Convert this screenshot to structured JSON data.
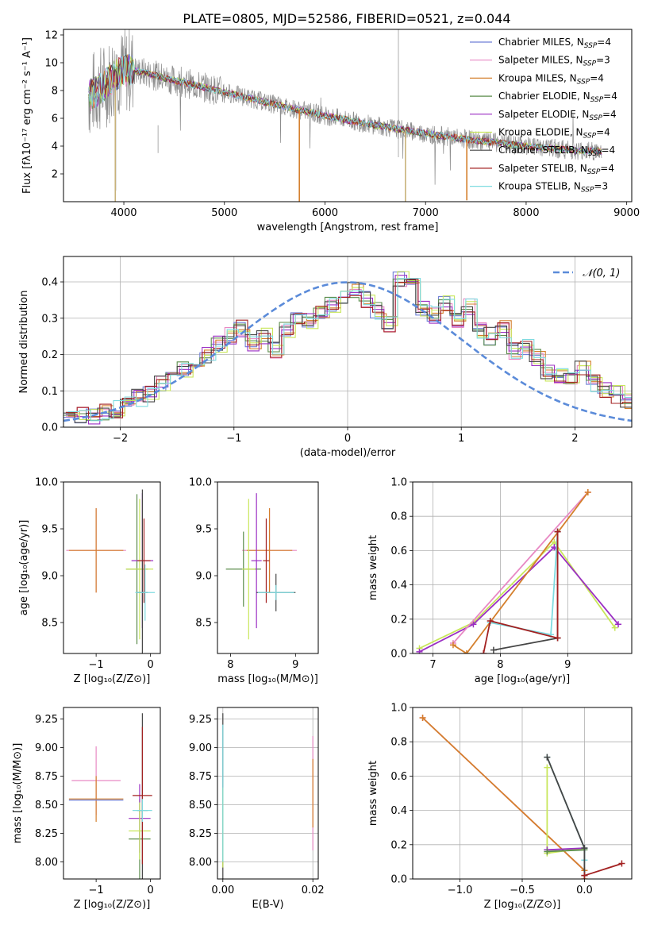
{
  "title": "PLATE=0805, MJD=52586, FIBERID=0521, z=0.044",
  "colors": {
    "chabrier_miles": "#6f7fd6",
    "salpeter_miles": "#e889c4",
    "kroupa_miles": "#d47f2c",
    "chabrier_elodie": "#5c8d4c",
    "salpeter_elodie": "#9b2fc4",
    "kroupa_elodie": "#c8e65a",
    "chabrier_stelib": "#454545",
    "salpeter_stelib": "#a32121",
    "kroupa_stelib": "#7fdbe0",
    "normal": "#5b8bd9",
    "data": "#8c8c8c"
  },
  "chart_data": [
    {
      "panel": "spectrum",
      "type": "line",
      "title": "PLATE=0805, MJD=52586, FIBERID=0521, z=0.044",
      "xlabel": "wavelength [Angstrom, rest frame]",
      "ylabel": "Flux [fλ10⁻¹⁷ erg cm⁻² s⁻¹ A⁻¹]",
      "xlim": [
        3400,
        9050
      ],
      "ylim": [
        0,
        12.4
      ],
      "xticks": [
        "4000",
        "5000",
        "6000",
        "7000",
        "8000",
        "9000"
      ],
      "xtick_values": [
        4000,
        5000,
        6000,
        7000,
        8000,
        9000
      ],
      "yticks": [
        "2",
        "4",
        "6",
        "8",
        "10",
        "12"
      ],
      "ytick_values": [
        2,
        4,
        6,
        8,
        10,
        12
      ],
      "grid": false,
      "legend_position": "top-right",
      "legend": [
        {
          "label": "Chabrier MILES, N",
          "sub": "SSP",
          "tail": "=4",
          "color": "#6f7fd6"
        },
        {
          "label": "Salpeter MILES, N",
          "sub": "SSP",
          "tail": "=3",
          "color": "#e889c4"
        },
        {
          "label": "Kroupa MILES, N",
          "sub": "SSP",
          "tail": "=4",
          "color": "#d47f2c"
        },
        {
          "label": "Chabrier ELODIE, N",
          "sub": "SSP",
          "tail": "=4",
          "color": "#5c8d4c"
        },
        {
          "label": "Salpeter ELODIE, N",
          "sub": "SSP",
          "tail": "=4",
          "color": "#9b2fc4"
        },
        {
          "label": "Kroupa ELODIE, N",
          "sub": "SSP",
          "tail": "=4",
          "color": "#c8e65a"
        },
        {
          "label": "Chabrier STELIB, N",
          "sub": "SSP",
          "tail": "=4",
          "color": "#454545"
        },
        {
          "label": "Salpeter STELIB, N",
          "sub": "SSP",
          "tail": "=4",
          "color": "#a32121"
        },
        {
          "label": "Kroupa STELIB, N",
          "sub": "SSP",
          "tail": "=3",
          "color": "#7fdbe0"
        }
      ],
      "continuum": [
        [
          3650,
          7.6
        ],
        [
          3800,
          8.3
        ],
        [
          3950,
          9.3
        ],
        [
          4050,
          9.5
        ],
        [
          4200,
          9.3
        ],
        [
          4400,
          8.9
        ],
        [
          4700,
          8.4
        ],
        [
          5000,
          7.9
        ],
        [
          5500,
          7.0
        ],
        [
          6000,
          6.2
        ],
        [
          6500,
          5.5
        ],
        [
          7000,
          4.9
        ],
        [
          7400,
          4.5
        ],
        [
          8000,
          4.0
        ],
        [
          8500,
          3.7
        ],
        [
          8750,
          3.6
        ]
      ],
      "model_drops": [
        {
          "x": 3915,
          "to": 0.0,
          "color": "#c8b27a"
        },
        {
          "x": 5745,
          "to": 0.0,
          "color": "#d47f2c"
        },
        {
          "x": 6800,
          "to": 0.0,
          "color": "#c8b27a"
        },
        {
          "x": 7410,
          "to": 0.1,
          "color": "#d47f2c"
        }
      ]
    },
    {
      "panel": "residuals",
      "type": "step",
      "xlabel": "(data-model)/error",
      "ylabel": "Normed distribution",
      "xlim": [
        -2.5,
        2.5
      ],
      "ylim": [
        0,
        0.47
      ],
      "xticks": [
        "−2",
        "−1",
        "0",
        "1",
        "2"
      ],
      "xtick_values": [
        -2,
        -1,
        0,
        1,
        2
      ],
      "yticks": [
        "0.0",
        "0.1",
        "0.2",
        "0.3",
        "0.4"
      ],
      "ytick_values": [
        0.0,
        0.1,
        0.2,
        0.3,
        0.4
      ],
      "grid": true,
      "legend_position": "top-right",
      "legend": [
        {
          "label": "𝒩(0, 1)",
          "style": "dashed",
          "color": "#5b8bd9"
        }
      ],
      "bin_width": 0.1,
      "bin_start": -2.5,
      "hist_base": [
        0.04,
        0.03,
        0.03,
        0.04,
        0.05,
        0.06,
        0.08,
        0.09,
        0.12,
        0.14,
        0.16,
        0.18,
        0.2,
        0.23,
        0.25,
        0.27,
        0.23,
        0.25,
        0.21,
        0.27,
        0.3,
        0.29,
        0.31,
        0.34,
        0.36,
        0.38,
        0.35,
        0.32,
        0.28,
        0.41,
        0.39,
        0.33,
        0.31,
        0.34,
        0.29,
        0.33,
        0.27,
        0.25,
        0.27,
        0.21,
        0.22,
        0.19,
        0.15,
        0.14,
        0.13,
        0.16,
        0.12,
        0.1,
        0.09,
        0.07
      ],
      "normal_curve": {
        "mu": 0,
        "sigma": 1,
        "label": "𝒩(0, 1)"
      }
    },
    {
      "panel": "age_vs_Z",
      "type": "errorbar",
      "xlabel": "Z [log₁₀(Z/Z⊙)]",
      "ylabel": "age  [log₁₀(age/yr)]",
      "xlim": [
        -1.6,
        0.18
      ],
      "ylim": [
        8.17,
        10.0
      ],
      "xticks": [
        "−1",
        "0"
      ],
      "xtick_values": [
        -1,
        0
      ],
      "yticks": [
        "8.5",
        "9.0",
        "9.5",
        "10.0"
      ],
      "ytick_values": [
        8.5,
        9.0,
        9.5,
        10.0
      ],
      "grid": false,
      "points": [
        {
          "x": -1.0,
          "y": 9.27,
          "xerr": 0.55,
          "yerr": 0.45,
          "color": "#e889c4"
        },
        {
          "x": -1.0,
          "y": 9.27,
          "xerr": 0.5,
          "yerr": 0.45,
          "color": "#d47f2c"
        },
        {
          "x": -0.25,
          "y": 9.07,
          "xerr": 0.2,
          "yerr": 0.8,
          "color": "#5c8d4c"
        },
        {
          "x": -0.15,
          "y": 9.16,
          "xerr": 0.2,
          "yerr": 0.72,
          "color": "#9b2fc4"
        },
        {
          "x": -0.2,
          "y": 9.07,
          "xerr": 0.25,
          "yerr": 0.75,
          "color": "#c8e65a"
        },
        {
          "x": -0.15,
          "y": 8.82,
          "xerr": 0.1,
          "yerr": 1.1,
          "color": "#454545"
        },
        {
          "x": -0.12,
          "y": 9.16,
          "xerr": 0.12,
          "yerr": 0.45,
          "color": "#a32121"
        },
        {
          "x": -0.1,
          "y": 8.82,
          "xerr": 0.18,
          "yerr": 0.3,
          "color": "#7fdbe0"
        }
      ]
    },
    {
      "panel": "age_vs_mass",
      "type": "errorbar",
      "xlabel": "mass [log₁₀(M/M⊙)]",
      "ylabel": "",
      "xlim": [
        7.8,
        9.35
      ],
      "ylim": [
        8.17,
        10.0
      ],
      "xticks": [
        "8",
        "9"
      ],
      "xtick_values": [
        8,
        9
      ],
      "yticks": [
        "8.5",
        "9.0",
        "9.5",
        "10.0"
      ],
      "ytick_values": [
        8.5,
        9.0,
        9.5,
        10.0
      ],
      "grid": false,
      "points": [
        {
          "x": 8.6,
          "y": 9.27,
          "xerr": 0.42,
          "yerr": 0.45,
          "color": "#e889c4"
        },
        {
          "x": 8.6,
          "y": 9.27,
          "xerr": 0.35,
          "yerr": 0.45,
          "color": "#d47f2c"
        },
        {
          "x": 8.2,
          "y": 9.07,
          "xerr": 0.27,
          "yerr": 0.4,
          "color": "#5c8d4c"
        },
        {
          "x": 8.4,
          "y": 9.16,
          "xerr": 0.08,
          "yerr": 0.72,
          "color": "#9b2fc4"
        },
        {
          "x": 8.28,
          "y": 9.07,
          "xerr": 0.1,
          "yerr": 0.75,
          "color": "#c8e65a"
        },
        {
          "x": 8.7,
          "y": 8.82,
          "xerr": 0.3,
          "yerr": 0.2,
          "color": "#454545"
        },
        {
          "x": 8.55,
          "y": 9.16,
          "xerr": 0.05,
          "yerr": 0.45,
          "color": "#a32121"
        },
        {
          "x": 8.7,
          "y": 8.82,
          "xerr": 0.28,
          "yerr": 0.08,
          "color": "#7fdbe0"
        }
      ]
    },
    {
      "panel": "weight_vs_age",
      "type": "line",
      "xlabel": "age  [log₁₀(age/yr)]",
      "ylabel": "mass weight",
      "xlim": [
        6.7,
        9.95
      ],
      "ylim": [
        0,
        1.0
      ],
      "xticks": [
        "7",
        "8",
        "9"
      ],
      "xtick_values": [
        7,
        8,
        9
      ],
      "yticks": [
        "0.0",
        "0.2",
        "0.4",
        "0.6",
        "0.8",
        "1.0"
      ],
      "ytick_values": [
        0.0,
        0.2,
        0.4,
        0.6,
        0.8,
        1.0
      ],
      "grid": true,
      "series": [
        {
          "color": "#c8e65a",
          "points": [
            [
              6.8,
              0.03
            ],
            [
              7.6,
              0.18
            ],
            [
              8.8,
              0.65
            ],
            [
              9.7,
              0.15
            ]
          ]
        },
        {
          "color": "#9b2fc4",
          "points": [
            [
              6.8,
              0.01
            ],
            [
              7.6,
              0.17
            ],
            [
              8.8,
              0.62
            ],
            [
              9.75,
              0.17
            ]
          ]
        },
        {
          "color": "#e889c4",
          "points": [
            [
              7.3,
              0.06
            ],
            [
              9.3,
              0.94
            ]
          ]
        },
        {
          "color": "#d47f2c",
          "points": [
            [
              7.3,
              0.05
            ],
            [
              7.5,
              0.0
            ],
            [
              9.3,
              0.94
            ]
          ]
        },
        {
          "color": "#7fdbe0",
          "points": [
            [
              7.85,
              0.18
            ],
            [
              8.75,
              0.11
            ],
            [
              8.85,
              0.71
            ]
          ]
        },
        {
          "color": "#454545",
          "points": [
            [
              7.9,
              0.02
            ],
            [
              8.85,
              0.09
            ],
            [
              8.85,
              0.71
            ]
          ]
        },
        {
          "color": "#a32121",
          "points": [
            [
              7.75,
              0.0
            ],
            [
              7.85,
              0.19
            ],
            [
              8.85,
              0.09
            ],
            [
              8.85,
              0.71
            ]
          ]
        }
      ]
    },
    {
      "panel": "mass_vs_Z",
      "type": "errorbar",
      "xlabel": "Z [log₁₀(Z/Z⊙)]",
      "ylabel": "mass [log₁₀(M/M⊙)]",
      "xlim": [
        -1.6,
        0.18
      ],
      "ylim": [
        7.85,
        9.35
      ],
      "xticks": [
        "−1",
        "0"
      ],
      "xtick_values": [
        -1,
        0
      ],
      "yticks": [
        "8.00",
        "8.25",
        "8.50",
        "8.75",
        "9.00",
        "9.25"
      ],
      "ytick_values": [
        8.0,
        8.25,
        8.5,
        8.75,
        9.0,
        9.25
      ],
      "grid": false,
      "points": [
        {
          "x": -1.0,
          "y": 8.71,
          "xerr": 0.45,
          "yerr": 0.3,
          "color": "#e889c4"
        },
        {
          "x": -1.0,
          "y": 8.55,
          "xerr": 0.5,
          "yerr": 0.2,
          "color": "#d47f2c"
        },
        {
          "x": -1.0,
          "y": 8.54,
          "xerr": 0.5,
          "yerr": 0.0,
          "color": "#6f7fd6"
        },
        {
          "x": -0.2,
          "y": 8.2,
          "xerr": 0.2,
          "yerr": 0.35,
          "color": "#5c8d4c"
        },
        {
          "x": -0.2,
          "y": 8.38,
          "xerr": 0.2,
          "yerr": 0.3,
          "color": "#9b2fc4"
        },
        {
          "x": -0.2,
          "y": 8.27,
          "xerr": 0.2,
          "yerr": 0.25,
          "color": "#c8e65a"
        },
        {
          "x": -0.15,
          "y": 8.45,
          "xerr": 0.1,
          "yerr": 0.85,
          "color": "#454545"
        },
        {
          "x": -0.15,
          "y": 8.58,
          "xerr": 0.18,
          "yerr": 0.6,
          "color": "#a32121"
        },
        {
          "x": -0.15,
          "y": 8.45,
          "xerr": 0.18,
          "yerr": 0.1,
          "color": "#7fdbe0"
        }
      ]
    },
    {
      "panel": "mass_vs_ebv",
      "type": "errorbar",
      "xlabel": "E(B-V)",
      "ylabel": "",
      "xlim": [
        -0.0012,
        0.0212
      ],
      "ylim": [
        7.85,
        9.35
      ],
      "xticks": [
        "0.00",
        "0.02"
      ],
      "xtick_values": [
        0.0,
        0.02
      ],
      "yticks": [
        "8.00",
        "8.25",
        "8.50",
        "8.75",
        "9.00",
        "9.25"
      ],
      "ytick_values": [
        8.0,
        8.25,
        8.5,
        8.75,
        9.0,
        9.25
      ],
      "grid": true,
      "points": [
        {
          "x": 0.0,
          "y": 8.5,
          "xerr": 0,
          "yerr": 0.8,
          "color": "#454545"
        },
        {
          "x": 0.0,
          "y": 8.3,
          "xerr": 0,
          "yerr": 0.35,
          "color": "#c8e65a"
        },
        {
          "x": 0.0,
          "y": 8.6,
          "xerr": 0,
          "yerr": 0.6,
          "color": "#7fdbe0"
        },
        {
          "x": 0.02,
          "y": 8.6,
          "xerr": 0,
          "yerr": 0.5,
          "color": "#e889c4"
        },
        {
          "x": 0.02,
          "y": 8.6,
          "xerr": 0,
          "yerr": 0.3,
          "color": "#d47f2c"
        }
      ]
    },
    {
      "panel": "weight_vs_Z",
      "type": "line",
      "xlabel": "Z [log₁₀(Z/Z⊙)]",
      "ylabel": "mass weight",
      "xlim": [
        -1.38,
        0.38
      ],
      "ylim": [
        0,
        1.0
      ],
      "xticks": [
        "−1.0",
        "−0.5",
        "0.0"
      ],
      "xtick_values": [
        -1.0,
        -0.5,
        0.0
      ],
      "yticks": [
        "0.0",
        "0.2",
        "0.4",
        "0.6",
        "0.8",
        "1.0"
      ],
      "ytick_values": [
        0.0,
        0.2,
        0.4,
        0.6,
        0.8,
        1.0
      ],
      "grid": true,
      "series": [
        {
          "color": "#e889c4",
          "points": [
            [
              -1.3,
              0.94
            ],
            [
              0.0,
              0.05
            ]
          ]
        },
        {
          "color": "#d47f2c",
          "points": [
            [
              -1.3,
              0.94
            ],
            [
              0.0,
              0.05
            ],
            [
              0.0,
              0.0
            ]
          ]
        },
        {
          "color": "#c8e65a",
          "points": [
            [
              -0.3,
              0.65
            ],
            [
              -0.3,
              0.15
            ],
            [
              0.0,
              0.18
            ]
          ]
        },
        {
          "color": "#9b2fc4",
          "points": [
            [
              -0.3,
              0.17
            ],
            [
              0.0,
              0.18
            ]
          ]
        },
        {
          "color": "#5c8d4c",
          "points": [
            [
              -0.3,
              0.16
            ],
            [
              0.0,
              0.17
            ]
          ]
        },
        {
          "color": "#7fdbe0",
          "points": [
            [
              -0.3,
              0.71
            ],
            [
              0.0,
              0.18
            ],
            [
              0.0,
              0.11
            ]
          ]
        },
        {
          "color": "#454545",
          "points": [
            [
              -0.3,
              0.71
            ],
            [
              0.0,
              0.18
            ],
            [
              0.0,
              0.02
            ]
          ]
        },
        {
          "color": "#a32121",
          "points": [
            [
              0.0,
              0.02
            ],
            [
              0.3,
              0.09
            ]
          ]
        }
      ]
    }
  ]
}
